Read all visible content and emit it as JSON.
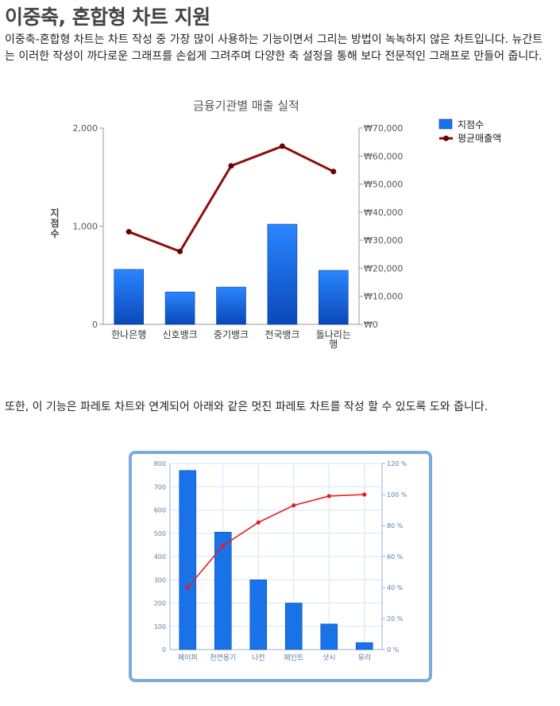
{
  "page": {
    "title": "이중축, 혼합형 차트 지원",
    "paragraph1": " 이중축-혼합형 차트는 차트 작성 중 가장 많이 사용하는 기능이면서 그리는 방법이 녹녹하지 않은 차트입니다. 뉴간트는 이러한 작성이 까다로운 그래프를 손쉽게 그려주며 다양한 축 설정을 통해 보다 전문적인 그래프로 만들어 줍니다.",
    "paragraph2": " 또한, 이 기능은 파레토 차트와 연계되어 아래와 같은 멋진 파레토 차트를 작성 할 수 있도록 도와 줍니다."
  },
  "chart_data": [
    {
      "type": "bar",
      "title": "금융기관별 매출 실적",
      "categories": [
        "한나은행",
        "신호뱅크",
        "중기뱅크",
        "전국뱅크",
        "돌나리는행"
      ],
      "category_lines": [
        [
          "한나은행"
        ],
        [
          "신호뱅크"
        ],
        [
          "중기뱅크"
        ],
        [
          "전국뱅크"
        ],
        [
          "돌나리는",
          "행"
        ]
      ],
      "ylabel": "지점수",
      "y_left_lim": [
        0,
        2000
      ],
      "y_left_ticks": [
        0,
        1000,
        2000
      ],
      "y_left_tick_labels": [
        "0",
        "1,000",
        "2,000"
      ],
      "y_right_lim": [
        0,
        70000
      ],
      "y_right_ticks": [
        0,
        10000,
        20000,
        30000,
        40000,
        50000,
        60000,
        70000
      ],
      "y_right_tick_labels": [
        "₩0",
        "₩10,000",
        "₩20,000",
        "₩30,000",
        "₩40,000",
        "₩50,000",
        "₩60,000",
        "₩70,000"
      ],
      "series": [
        {
          "name": "지점수",
          "type": "bar",
          "axis": "left",
          "values": [
            560,
            330,
            380,
            1020,
            550
          ],
          "color": "#1a72e8"
        },
        {
          "name": "평균매출액",
          "type": "line",
          "axis": "right",
          "values": [
            33000,
            26000,
            56500,
            63500,
            54500
          ],
          "color": "#8b0f0f"
        }
      ],
      "legend": "top-right",
      "grid": false
    },
    {
      "type": "bar",
      "categories": [
        "페이퍼",
        "천연용기",
        "나전",
        "페인트",
        "샷시",
        "유리"
      ],
      "y_left_lim": [
        0,
        800
      ],
      "y_left_ticks": [
        0,
        100,
        200,
        300,
        400,
        500,
        600,
        700,
        800
      ],
      "y_left_tick_labels": [
        "0",
        "100",
        "200",
        "300",
        "400",
        "500",
        "600",
        "700",
        "800"
      ],
      "y_right_lim": [
        0,
        120
      ],
      "y_right_ticks": [
        0,
        20,
        40,
        60,
        80,
        100,
        120
      ],
      "y_right_tick_labels": [
        "0 %",
        "20 %",
        "40 %",
        "60 %",
        "80 %",
        "100 %",
        "120 %"
      ],
      "series": [
        {
          "type": "bar",
          "axis": "left",
          "values": [
            770,
            505,
            300,
            200,
            110,
            30
          ],
          "color": "#1a72e8"
        },
        {
          "type": "line",
          "axis": "right",
          "values": [
            40,
            67,
            82,
            93,
            99,
            100
          ],
          "color": "#e81c1c"
        }
      ],
      "grid": true
    }
  ]
}
